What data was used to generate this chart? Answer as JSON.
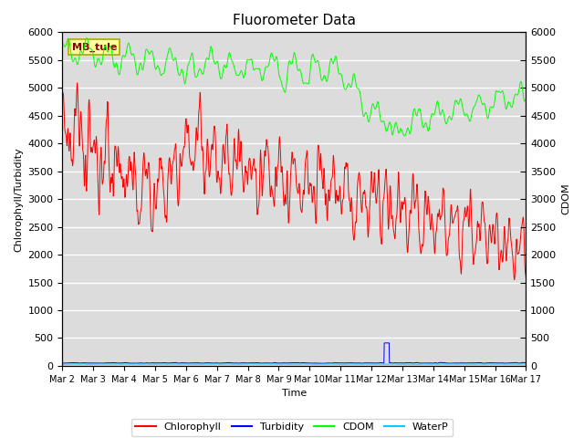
{
  "title": "Fluorometer Data",
  "xlabel": "Time",
  "ylabel_left": "Chlorophyll/Turbidity",
  "ylabel_right": "CDOM",
  "annotation_text": "MB_tule",
  "ylim_left": [
    0,
    6000
  ],
  "ylim_right": [
    0,
    6000
  ],
  "yticks": [
    0,
    500,
    1000,
    1500,
    2000,
    2500,
    3000,
    3500,
    4000,
    4500,
    5000,
    5500,
    6000
  ],
  "xtick_labels": [
    "Mar 2",
    "Mar 3",
    "Mar 4",
    "Mar 5",
    "Mar 6",
    "Mar 7",
    "Mar 8",
    "Mar 9",
    "Mar 10",
    "Mar 11",
    "Mar 12",
    "Mar 13",
    "Mar 14",
    "Mar 15",
    "Mar 16",
    "Mar 17"
  ],
  "colors": {
    "chlorophyll": "#FF0000",
    "turbidity": "#0000FF",
    "cdom": "#00FF00",
    "waterp": "#00CCFF",
    "background": "#DCDCDC",
    "annotation_bg": "#FFFF99",
    "annotation_border": "#AAAA00"
  },
  "legend_entries": [
    "Chlorophyll",
    "Turbidity",
    "CDOM",
    "WaterP"
  ],
  "title_fontsize": 11,
  "axis_fontsize": 8,
  "tick_fontsize": 8
}
